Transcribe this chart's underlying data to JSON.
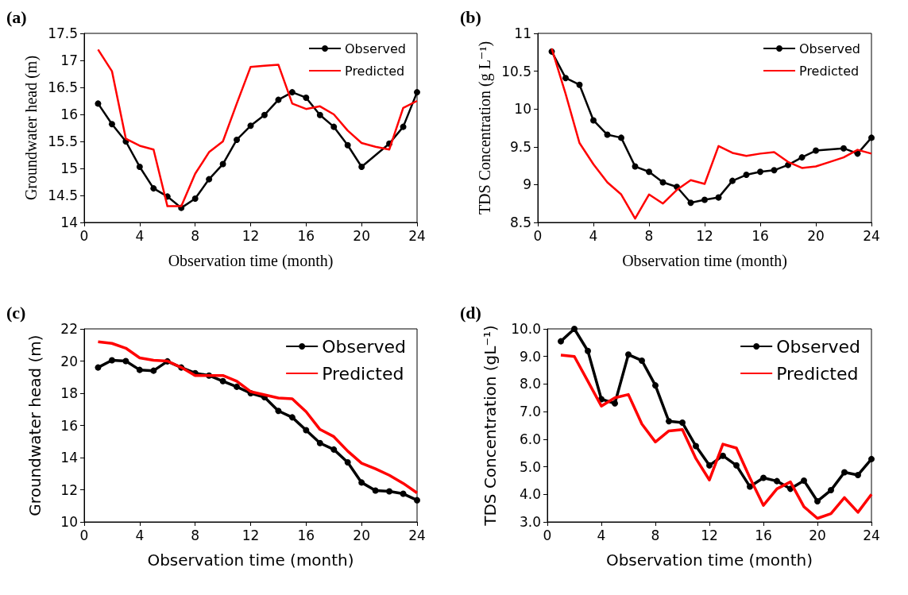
{
  "chart_data": [
    {
      "type": "line",
      "annotations": [
        "(a)"
      ],
      "xlabel": "Observation time (month)",
      "ylabel": "Groundwater head (m)",
      "xlim": [
        0,
        24
      ],
      "xticks": [
        0,
        4,
        8,
        12,
        16,
        20,
        24
      ],
      "ylim": [
        14,
        17.5
      ],
      "yticks": [
        14,
        14.5,
        15,
        15.5,
        16,
        16.5,
        17,
        17.5
      ],
      "legend": "top right",
      "grid": false,
      "series": [
        {
          "name": "Observed",
          "color": "#000000",
          "marker": "circle",
          "x": [
            1,
            2,
            3,
            4,
            5,
            6,
            7,
            8,
            9,
            10,
            11,
            12,
            13,
            14,
            15,
            16,
            17,
            18,
            19,
            20,
            22,
            23,
            24
          ],
          "values": [
            16.2,
            15.82,
            15.5,
            15.03,
            14.63,
            14.48,
            14.27,
            14.44,
            14.8,
            15.08,
            15.53,
            15.79,
            15.99,
            16.27,
            16.41,
            16.31,
            15.99,
            15.77,
            15.43,
            15.03,
            15.46,
            15.77,
            16.41
          ]
        },
        {
          "name": "Predicted",
          "color": "#ff0000",
          "marker": "none",
          "x": [
            1,
            2,
            3,
            4,
            5,
            6,
            7,
            8,
            9,
            10,
            11,
            12,
            13,
            14,
            15,
            16,
            17,
            18,
            19,
            20,
            21,
            22,
            23,
            24
          ],
          "values": [
            17.2,
            16.8,
            15.55,
            15.42,
            15.35,
            14.3,
            14.3,
            14.9,
            15.3,
            15.5,
            16.2,
            16.88,
            16.9,
            16.92,
            16.2,
            16.1,
            16.15,
            16.0,
            15.7,
            15.47,
            15.4,
            15.35,
            16.12,
            16.25
          ]
        }
      ]
    },
    {
      "type": "line",
      "annotations": [
        "(b)"
      ],
      "xlabel": "Observation time (month)",
      "ylabel": "TDS Concentration (g L⁻¹)",
      "xlim": [
        0,
        24
      ],
      "xticks": [
        0,
        4,
        8,
        12,
        16,
        20,
        24
      ],
      "ylim": [
        8.5,
        11
      ],
      "yticks": [
        8.5,
        9,
        9.5,
        10,
        10.5,
        11
      ],
      "legend": "top right",
      "grid": false,
      "series": [
        {
          "name": "Observed",
          "color": "#000000",
          "marker": "circle",
          "x": [
            1,
            2,
            3,
            4,
            5,
            6,
            7,
            8,
            9,
            10,
            11,
            12,
            13,
            14,
            15,
            16,
            17,
            18,
            19,
            20,
            22,
            23,
            24
          ],
          "values": [
            10.76,
            10.41,
            10.32,
            9.85,
            9.66,
            9.62,
            9.24,
            9.17,
            9.03,
            8.97,
            8.76,
            8.8,
            8.83,
            9.05,
            9.13,
            9.17,
            9.19,
            9.26,
            9.36,
            9.45,
            9.48,
            9.41,
            9.62
          ]
        },
        {
          "name": "Predicted",
          "color": "#ff0000",
          "marker": "none",
          "x": [
            1,
            2,
            3,
            4,
            5,
            6,
            7,
            8,
            9,
            10,
            11,
            12,
            13,
            14,
            15,
            16,
            17,
            18,
            19,
            20,
            21,
            22,
            23,
            24
          ],
          "values": [
            10.8,
            10.2,
            9.55,
            9.27,
            9.03,
            8.87,
            8.55,
            8.87,
            8.75,
            8.93,
            9.06,
            9.01,
            9.51,
            9.42,
            9.38,
            9.41,
            9.43,
            9.3,
            9.22,
            9.24,
            9.3,
            9.36,
            9.46,
            9.41
          ]
        }
      ]
    },
    {
      "type": "line",
      "annotations": [
        "(c)"
      ],
      "xlabel": "Observation time (month)",
      "ylabel": "Groundwater head (m)",
      "xlim": [
        0,
        24
      ],
      "xticks": [
        0,
        4,
        8,
        12,
        16,
        20,
        24
      ],
      "ylim": [
        10,
        22
      ],
      "yticks": [
        10,
        12,
        14,
        16,
        18,
        20,
        22
      ],
      "legend": "top right",
      "grid": false,
      "series": [
        {
          "name": "Observed",
          "color": "#000000",
          "marker": "circle",
          "x": [
            1,
            2,
            3,
            4,
            5,
            6,
            7,
            8,
            9,
            10,
            11,
            12,
            13,
            14,
            15,
            16,
            17,
            18,
            19,
            20,
            21,
            22,
            23,
            24
          ],
          "values": [
            19.6,
            20.05,
            20.0,
            19.45,
            19.4,
            19.98,
            19.6,
            19.25,
            19.1,
            18.75,
            18.4,
            18.0,
            17.75,
            16.9,
            16.5,
            15.7,
            14.9,
            14.5,
            13.7,
            12.45,
            11.95,
            11.9,
            11.75,
            11.35
          ]
        },
        {
          "name": "Predicted",
          "color": "#ff0000",
          "marker": "none",
          "x": [
            1,
            2,
            3,
            4,
            5,
            6,
            7,
            8,
            9,
            10,
            11,
            12,
            13,
            14,
            15,
            16,
            17,
            18,
            19,
            20,
            21,
            22,
            23,
            24
          ],
          "values": [
            21.2,
            21.1,
            20.8,
            20.2,
            20.05,
            20.0,
            19.6,
            19.1,
            19.1,
            19.1,
            18.75,
            18.1,
            17.9,
            17.7,
            17.65,
            16.85,
            15.75,
            15.3,
            14.4,
            13.65,
            13.3,
            12.9,
            12.4,
            11.8
          ]
        }
      ]
    },
    {
      "type": "line",
      "annotations": [
        "(d)"
      ],
      "xlabel": "Observation time (month)",
      "ylabel": "TDS Concentration (gL⁻¹)",
      "xlim": [
        0,
        24
      ],
      "xticks": [
        0,
        4,
        8,
        12,
        16,
        20,
        24
      ],
      "ylim": [
        3,
        10
      ],
      "yticks": [
        {
          "value": 3,
          "label": "3.0"
        },
        {
          "value": 4,
          "label": "4.0"
        },
        {
          "value": 5,
          "label": "5.0"
        },
        {
          "value": 6,
          "label": "6.0"
        },
        {
          "value": 7,
          "label": "7.0"
        },
        {
          "value": 8,
          "label": "8.0"
        },
        {
          "value": 9,
          "label": "9.0"
        },
        {
          "value": 10,
          "label": "10.0"
        }
      ],
      "legend": "top right",
      "grid": false,
      "series": [
        {
          "name": "Observed",
          "color": "#000000",
          "marker": "circle",
          "x": [
            1,
            2,
            3,
            4,
            5,
            6,
            7,
            8,
            9,
            10,
            11,
            12,
            13,
            14,
            15,
            16,
            17,
            18,
            19,
            20,
            21,
            22,
            23,
            24
          ],
          "values": [
            9.55,
            10.0,
            9.2,
            7.45,
            7.3,
            9.07,
            8.85,
            7.95,
            6.65,
            6.6,
            5.75,
            5.05,
            5.4,
            5.05,
            4.28,
            4.6,
            4.48,
            4.2,
            4.5,
            3.75,
            4.15,
            4.8,
            4.7,
            5.28
          ]
        },
        {
          "name": "Predicted",
          "color": "#ff0000",
          "marker": "none",
          "x": [
            1,
            2,
            3,
            4,
            5,
            6,
            7,
            8,
            9,
            10,
            11,
            12,
            13,
            14,
            15,
            16,
            17,
            18,
            19,
            20,
            21,
            22,
            23,
            24
          ],
          "values": [
            9.05,
            9.0,
            8.1,
            7.2,
            7.5,
            7.62,
            6.55,
            5.9,
            6.3,
            6.35,
            5.3,
            4.52,
            5.82,
            5.68,
            4.6,
            3.6,
            4.2,
            4.45,
            3.55,
            3.13,
            3.3,
            3.88,
            3.35,
            4.0
          ]
        }
      ]
    }
  ]
}
